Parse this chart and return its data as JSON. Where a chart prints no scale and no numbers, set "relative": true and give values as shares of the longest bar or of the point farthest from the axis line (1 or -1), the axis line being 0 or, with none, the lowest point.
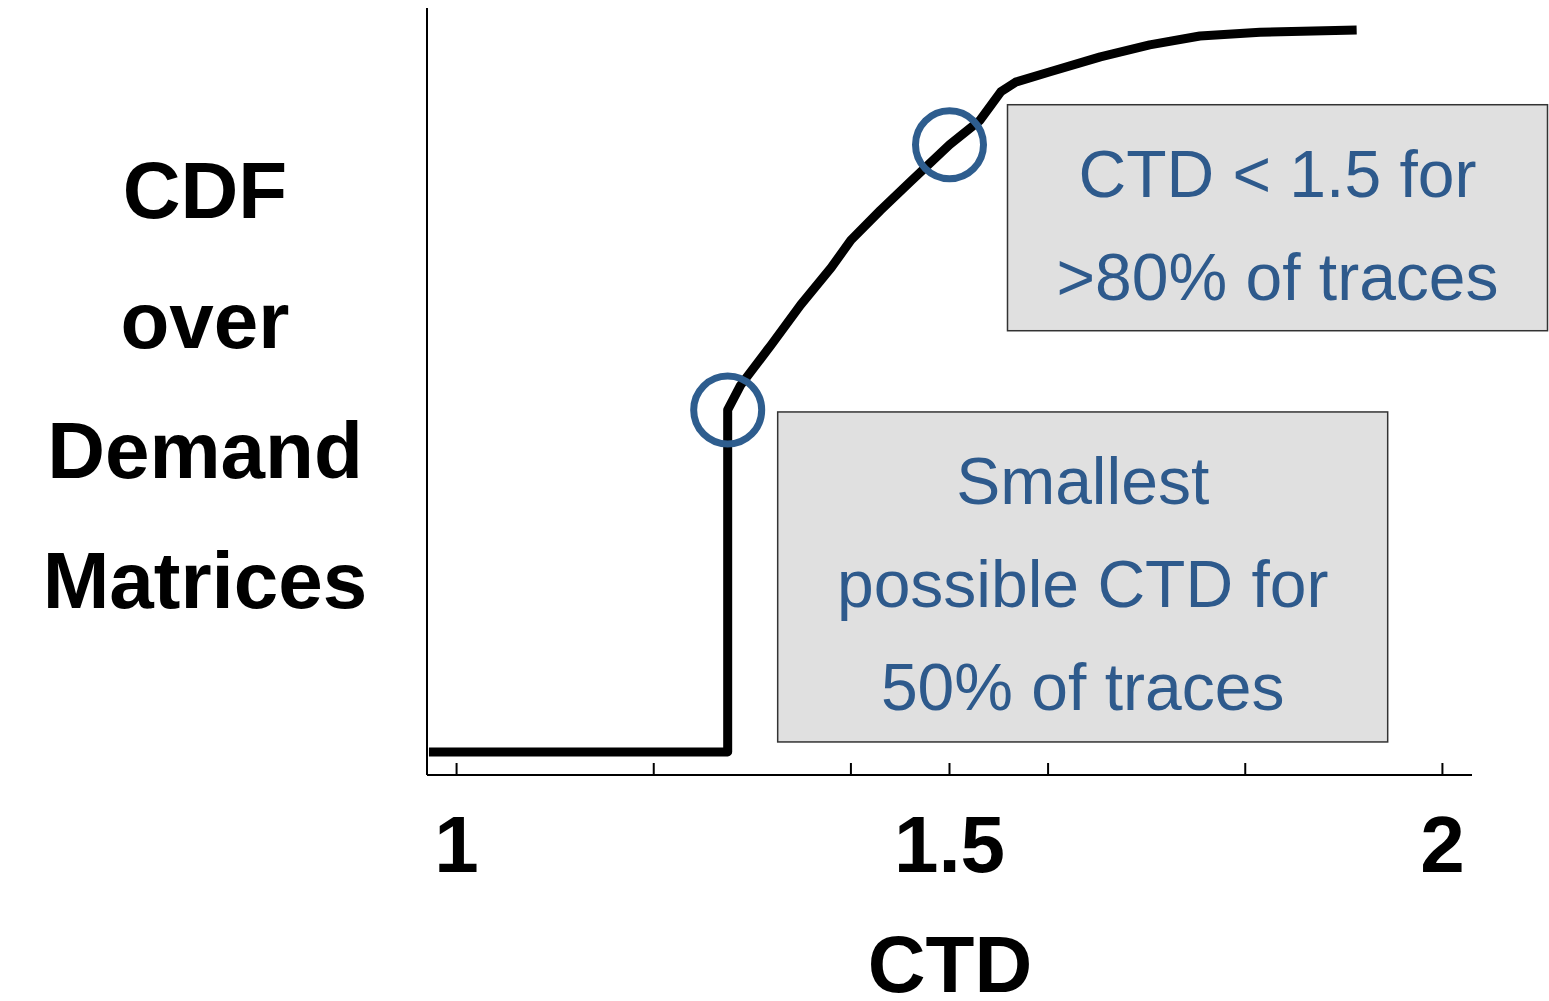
{
  "chart_data": {
    "type": "line",
    "relative": true,
    "xlabel": "CTD",
    "ylabel": "CDF\nover\nDemand\nMatrices",
    "xlim": [
      0.97,
      2.03
    ],
    "xticks": [
      1,
      {
        "value": 1.2,
        "label": null
      },
      {
        "value": 1.4,
        "label": null
      },
      1.5,
      {
        "value": 1.6,
        "label": null
      },
      {
        "value": 1.8,
        "label": null
      },
      2
    ],
    "series": [
      {
        "color": "#000000",
        "x": [
          0.972,
          1.275,
          1.275,
          1.288,
          1.319,
          1.349,
          1.38,
          1.4,
          1.43,
          1.46,
          1.5,
          1.531,
          1.552,
          1.567,
          1.602,
          1.653,
          1.703,
          1.754,
          1.815,
          1.913
        ],
        "values": [
          0.031,
          0.031,
          0.49,
          0.523,
          0.577,
          0.631,
          0.681,
          0.718,
          0.758,
          0.796,
          0.846,
          0.879,
          0.917,
          0.93,
          0.944,
          0.964,
          0.98,
          0.992,
          0.997,
          1.0
        ]
      }
    ],
    "line_style": "solid",
    "marker": "none",
    "grid": false,
    "annotations": [
      {
        "text": "CTD < 1.5 for\n>80% of traces",
        "x": 1.5,
        "y": 0.846
      },
      {
        "text": "Smallest\npossible CTD for\n50% of traces",
        "x": 1.275,
        "y": 0.49
      }
    ]
  }
}
